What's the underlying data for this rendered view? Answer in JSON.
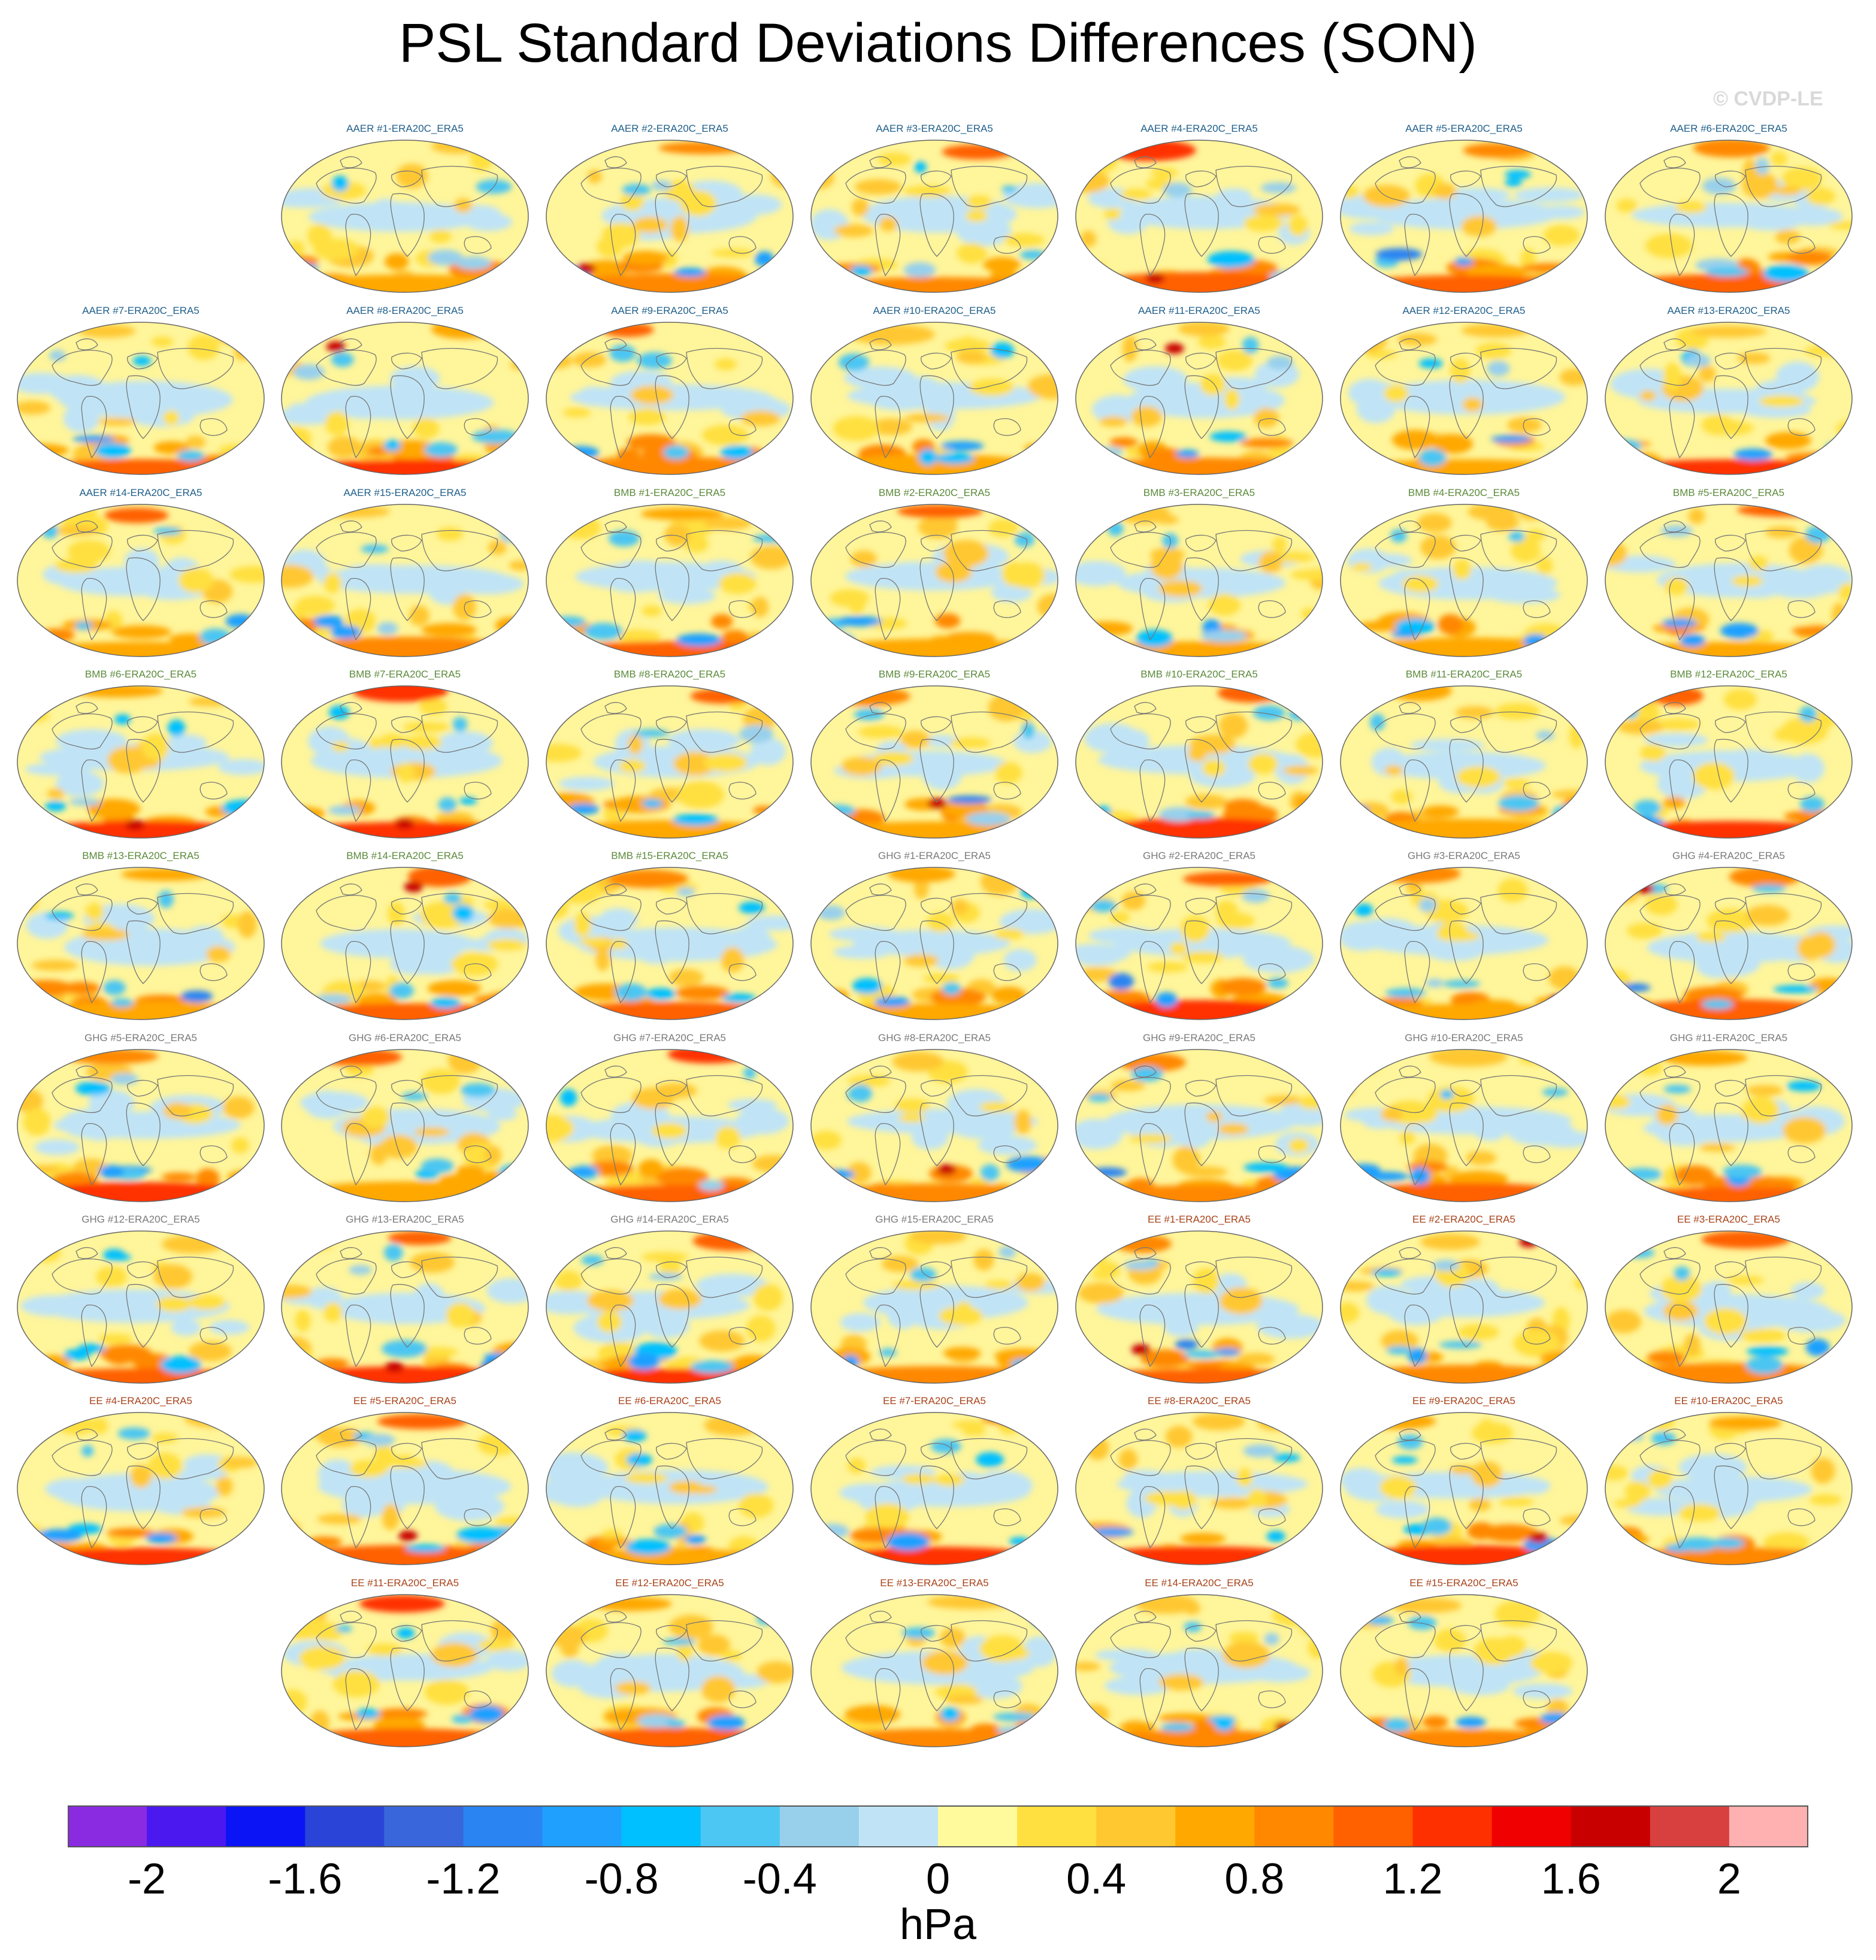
{
  "title": "PSL Standard Deviations Differences (SON)",
  "credit": "© CVDP-LE",
  "group_colors": {
    "AAER": "#1f5f8b",
    "BMB": "#5b8a3a",
    "GHG": "#7a7a7a",
    "EE": "#a8431a"
  },
  "panels": [
    {
      "title": "AAER #1-ERA20C_ERA5",
      "group": "AAER"
    },
    {
      "title": "AAER #2-ERA20C_ERA5",
      "group": "AAER"
    },
    {
      "title": "AAER #3-ERA20C_ERA5",
      "group": "AAER"
    },
    {
      "title": "AAER #4-ERA20C_ERA5",
      "group": "AAER"
    },
    {
      "title": "AAER #5-ERA20C_ERA5",
      "group": "AAER"
    },
    {
      "title": "AAER #6-ERA20C_ERA5",
      "group": "AAER"
    },
    {
      "title": "AAER #7-ERA20C_ERA5",
      "group": "AAER"
    },
    {
      "title": "AAER #8-ERA20C_ERA5",
      "group": "AAER"
    },
    {
      "title": "AAER #9-ERA20C_ERA5",
      "group": "AAER"
    },
    {
      "title": "AAER #10-ERA20C_ERA5",
      "group": "AAER"
    },
    {
      "title": "AAER #11-ERA20C_ERA5",
      "group": "AAER"
    },
    {
      "title": "AAER #12-ERA20C_ERA5",
      "group": "AAER"
    },
    {
      "title": "AAER #13-ERA20C_ERA5",
      "group": "AAER"
    },
    {
      "title": "AAER #14-ERA20C_ERA5",
      "group": "AAER"
    },
    {
      "title": "AAER #15-ERA20C_ERA5",
      "group": "AAER"
    },
    {
      "title": "BMB #1-ERA20C_ERA5",
      "group": "BMB"
    },
    {
      "title": "BMB #2-ERA20C_ERA5",
      "group": "BMB"
    },
    {
      "title": "BMB #3-ERA20C_ERA5",
      "group": "BMB"
    },
    {
      "title": "BMB #4-ERA20C_ERA5",
      "group": "BMB"
    },
    {
      "title": "BMB #5-ERA20C_ERA5",
      "group": "BMB"
    },
    {
      "title": "BMB #6-ERA20C_ERA5",
      "group": "BMB"
    },
    {
      "title": "BMB #7-ERA20C_ERA5",
      "group": "BMB"
    },
    {
      "title": "BMB #8-ERA20C_ERA5",
      "group": "BMB"
    },
    {
      "title": "BMB #9-ERA20C_ERA5",
      "group": "BMB"
    },
    {
      "title": "BMB #10-ERA20C_ERA5",
      "group": "BMB"
    },
    {
      "title": "BMB #11-ERA20C_ERA5",
      "group": "BMB"
    },
    {
      "title": "BMB #12-ERA20C_ERA5",
      "group": "BMB"
    },
    {
      "title": "BMB #13-ERA20C_ERA5",
      "group": "BMB"
    },
    {
      "title": "BMB #14-ERA20C_ERA5",
      "group": "BMB"
    },
    {
      "title": "BMB #15-ERA20C_ERA5",
      "group": "BMB"
    },
    {
      "title": "GHG #1-ERA20C_ERA5",
      "group": "GHG"
    },
    {
      "title": "GHG #2-ERA20C_ERA5",
      "group": "GHG"
    },
    {
      "title": "GHG #3-ERA20C_ERA5",
      "group": "GHG"
    },
    {
      "title": "GHG #4-ERA20C_ERA5",
      "group": "GHG"
    },
    {
      "title": "GHG #5-ERA20C_ERA5",
      "group": "GHG"
    },
    {
      "title": "GHG #6-ERA20C_ERA5",
      "group": "GHG"
    },
    {
      "title": "GHG #7-ERA20C_ERA5",
      "group": "GHG"
    },
    {
      "title": "GHG #8-ERA20C_ERA5",
      "group": "GHG"
    },
    {
      "title": "GHG #9-ERA20C_ERA5",
      "group": "GHG"
    },
    {
      "title": "GHG #10-ERA20C_ERA5",
      "group": "GHG"
    },
    {
      "title": "GHG #11-ERA20C_ERA5",
      "group": "GHG"
    },
    {
      "title": "GHG #12-ERA20C_ERA5",
      "group": "GHG"
    },
    {
      "title": "GHG #13-ERA20C_ERA5",
      "group": "GHG"
    },
    {
      "title": "GHG #14-ERA20C_ERA5",
      "group": "GHG"
    },
    {
      "title": "GHG #15-ERA20C_ERA5",
      "group": "GHG"
    },
    {
      "title": "EE #1-ERA20C_ERA5",
      "group": "EE"
    },
    {
      "title": "EE #2-ERA20C_ERA5",
      "group": "EE"
    },
    {
      "title": "EE #3-ERA20C_ERA5",
      "group": "EE"
    },
    {
      "title": "EE #4-ERA20C_ERA5",
      "group": "EE"
    },
    {
      "title": "EE #5-ERA20C_ERA5",
      "group": "EE"
    },
    {
      "title": "EE #6-ERA20C_ERA5",
      "group": "EE"
    },
    {
      "title": "EE #7-ERA20C_ERA5",
      "group": "EE"
    },
    {
      "title": "EE #8-ERA20C_ERA5",
      "group": "EE"
    },
    {
      "title": "EE #9-ERA20C_ERA5",
      "group": "EE"
    },
    {
      "title": "EE #10-ERA20C_ERA5",
      "group": "EE"
    },
    {
      "title": "EE #11-ERA20C_ERA5",
      "group": "EE"
    },
    {
      "title": "EE #12-ERA20C_ERA5",
      "group": "EE"
    },
    {
      "title": "EE #13-ERA20C_ERA5",
      "group": "EE"
    },
    {
      "title": "EE #14-ERA20C_ERA5",
      "group": "EE"
    },
    {
      "title": "EE #15-ERA20C_ERA5",
      "group": "EE"
    }
  ],
  "colorbar": {
    "units": "hPa",
    "min": -2.2,
    "max": 2.2,
    "colors": [
      "#8a2be2",
      "#4b19f0",
      "#0a14f5",
      "#2a44d8",
      "#3a66dc",
      "#2a84f2",
      "#1fa0ff",
      "#00c0ff",
      "#4cc6f2",
      "#98d0ec",
      "#c0e4f6",
      "#fffa9c",
      "#ffe040",
      "#ffc830",
      "#ffa800",
      "#ff8800",
      "#ff6000",
      "#ff3000",
      "#f00000",
      "#c80000",
      "#d84040",
      "#ffb0b0"
    ],
    "tick_values": [
      -2,
      -1.6,
      -1.2,
      -0.8,
      -0.4,
      0,
      0.4,
      0.8,
      1.2,
      1.6,
      2
    ],
    "tick_labels": [
      "-2",
      "-1.6",
      "-1.2",
      "-0.8",
      "-0.4",
      "0",
      "0.4",
      "0.8",
      "1.2",
      "1.6",
      "2"
    ]
  }
}
